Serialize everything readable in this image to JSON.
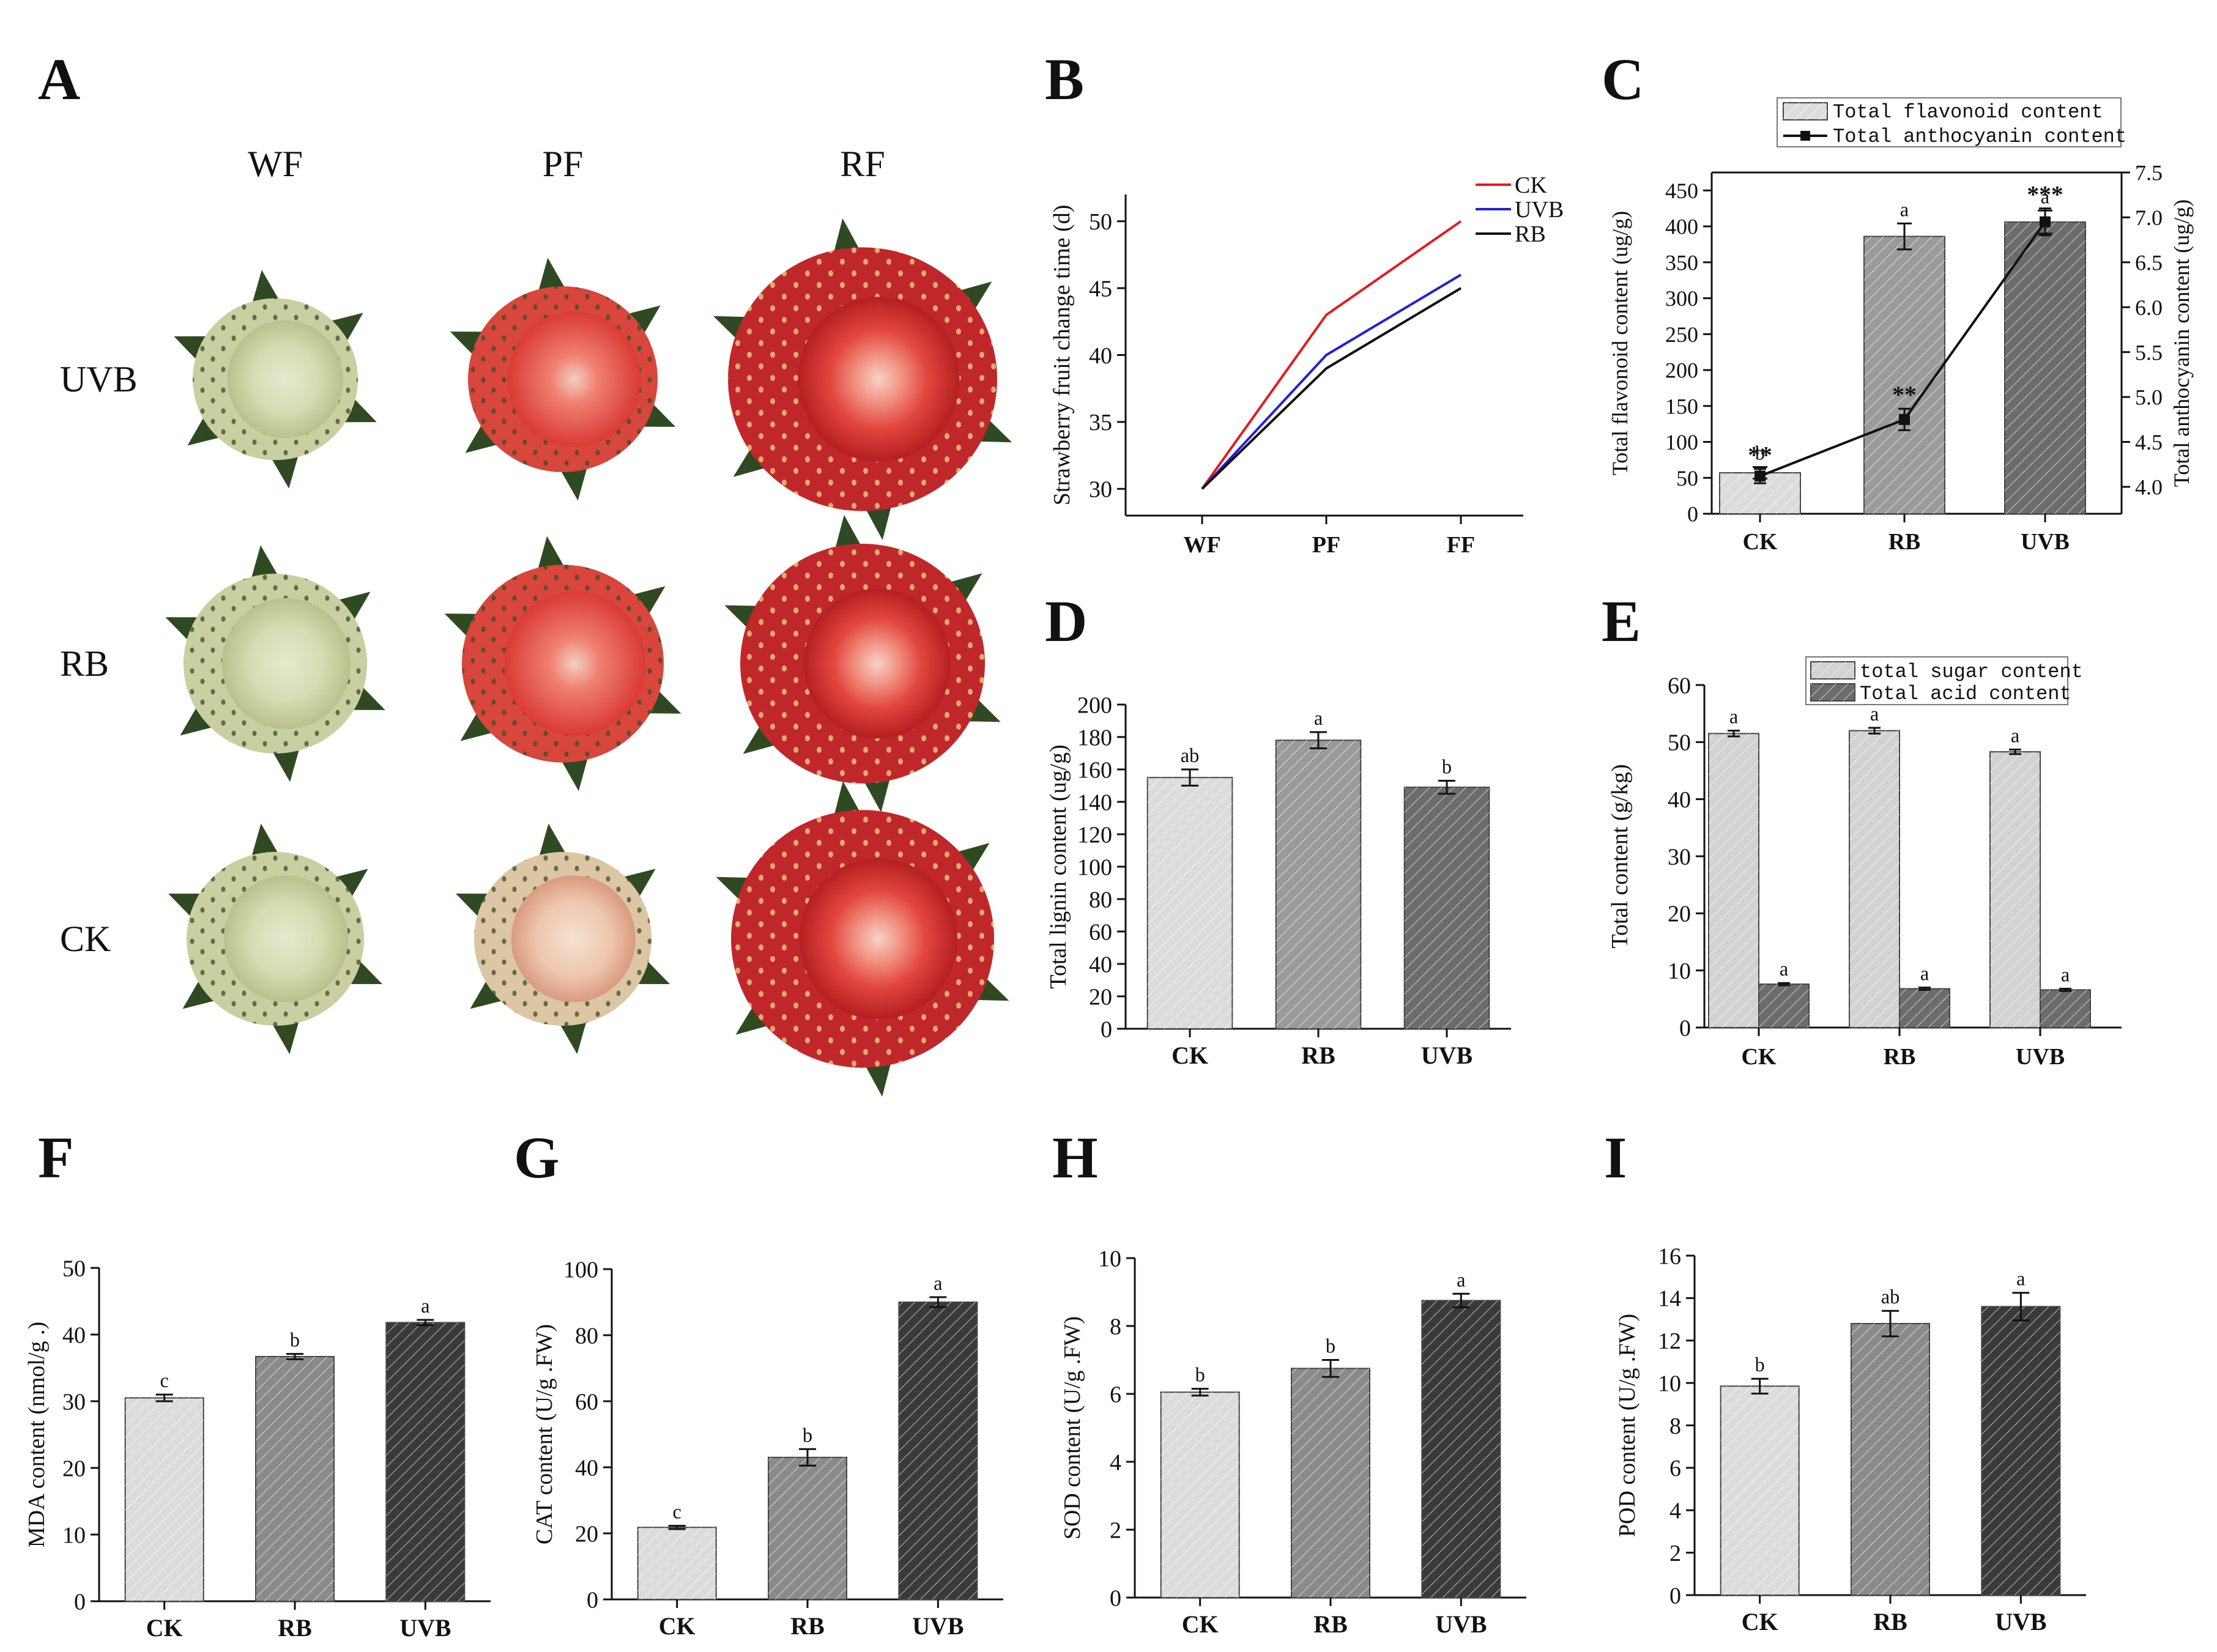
{
  "panels": {
    "A": {
      "letter": "A",
      "column_labels": [
        "WF",
        "PF",
        "RF"
      ],
      "row_labels": [
        "UVB",
        "RB",
        "CK"
      ]
    },
    "B": {
      "letter": "B",
      "chart_data": {
        "type": "line",
        "ylabel": "Strawberry fruit change time  (d)",
        "categories": [
          "WF",
          "PF",
          "FF"
        ],
        "ylim": [
          28,
          52
        ],
        "yticks": [
          30,
          35,
          40,
          45,
          50
        ],
        "series": [
          {
            "name": "CK",
            "values": [
              30,
              43,
              50
            ],
            "color": "#e41a1c"
          },
          {
            "name": "UVB",
            "values": [
              30,
              40,
              46
            ],
            "color": "#2020e0"
          },
          {
            "name": "RB",
            "values": [
              30,
              39,
              45
            ],
            "color": "#111111"
          }
        ]
      }
    },
    "C": {
      "letter": "C",
      "chart_data": {
        "type": "bar+line",
        "categories": [
          "CK",
          "RB",
          "UVB"
        ],
        "ylabel": "Total flavonoid content (ug/g)",
        "y2label": "Total anthocyanin content (ug/g)",
        "ylim": [
          0,
          475
        ],
        "yticks": [
          0,
          50,
          100,
          150,
          200,
          250,
          300,
          350,
          400,
          450
        ],
        "y2lim": [
          3.7,
          7.5
        ],
        "y2ticks": [
          4.0,
          4.5,
          5.0,
          5.5,
          6.0,
          6.5,
          7.0,
          7.5
        ],
        "bars": {
          "name": "Total flavonoid content",
          "values": [
            57,
            386,
            406
          ],
          "errors": [
            8,
            18,
            16
          ],
          "letters": [
            "b",
            "a",
            "a"
          ],
          "colors": [
            "#dcdcdc",
            "#9a9a9a",
            "#6c6c6c"
          ]
        },
        "line": {
          "name": "Total anthocyanin content",
          "values": [
            4.12,
            4.75,
            6.95
          ],
          "errors": [
            0.08,
            0.12,
            0.15
          ],
          "marks": [
            "**",
            "**",
            "***"
          ]
        }
      }
    },
    "D": {
      "letter": "D",
      "chart_data": {
        "type": "bar",
        "categories": [
          "CK",
          "RB",
          "UVB"
        ],
        "ylabel": "Total lignin content (ug/g)",
        "ylim": [
          0,
          200
        ],
        "yticks": [
          0,
          20,
          40,
          60,
          80,
          100,
          120,
          140,
          160,
          180,
          200
        ],
        "values": [
          155,
          178,
          149
        ],
        "errors": [
          5,
          5,
          4
        ],
        "letters": [
          "ab",
          "a",
          "b"
        ],
        "colors": [
          "#dcdcdc",
          "#9a9a9a",
          "#6c6c6c"
        ]
      }
    },
    "E": {
      "letter": "E",
      "chart_data": {
        "type": "grouped-bar",
        "categories": [
          "CK",
          "RB",
          "UVB"
        ],
        "ylabel": "Total content (g/kg)",
        "ylim": [
          0,
          60
        ],
        "yticks": [
          0,
          10,
          20,
          30,
          40,
          50,
          60
        ],
        "series": [
          {
            "name": "total sugar content",
            "values": [
              51.5,
              52.0,
              48.3
            ],
            "errors": [
              0.5,
              0.5,
              0.4
            ],
            "letters": [
              "a",
              "a",
              "a"
            ],
            "color": "#d2d2d2"
          },
          {
            "name": "Total acid content",
            "values": [
              7.6,
              6.8,
              6.6
            ],
            "errors": [
              0.2,
              0.2,
              0.2
            ],
            "letters": [
              "a",
              "a",
              "a"
            ],
            "color": "#6c6c6c"
          }
        ]
      }
    },
    "F": {
      "letter": "F",
      "chart_data": {
        "type": "bar",
        "categories": [
          "CK",
          "RB",
          "UVB"
        ],
        "ylabel": "MDA content (nmol/g .)",
        "ylim": [
          0,
          50
        ],
        "yticks": [
          0,
          10,
          20,
          30,
          40,
          50
        ],
        "values": [
          30.5,
          36.7,
          41.8
        ],
        "errors": [
          0.5,
          0.4,
          0.4
        ],
        "letters": [
          "c",
          "b",
          "a"
        ],
        "colors": [
          "#dcdcdc",
          "#8a8a8a",
          "#3a3a3a"
        ]
      }
    },
    "G": {
      "letter": "G",
      "chart_data": {
        "type": "bar",
        "categories": [
          "CK",
          "RB",
          "UVB"
        ],
        "ylabel": "CAT content (U/g .FW)",
        "ylim": [
          0,
          100
        ],
        "yticks": [
          0,
          20,
          40,
          60,
          80,
          100
        ],
        "values": [
          21.8,
          43.0,
          90.0
        ],
        "errors": [
          0.5,
          2.5,
          1.5
        ],
        "letters": [
          "c",
          "b",
          "a"
        ],
        "colors": [
          "#dcdcdc",
          "#8a8a8a",
          "#3a3a3a"
        ]
      }
    },
    "H": {
      "letter": "H",
      "chart_data": {
        "type": "bar",
        "categories": [
          "CK",
          "RB",
          "UVB"
        ],
        "ylabel": "SOD content (U/g .FW)",
        "ylim": [
          0,
          10
        ],
        "yticks": [
          0,
          2,
          4,
          6,
          8,
          10
        ],
        "values": [
          6.05,
          6.75,
          8.75
        ],
        "errors": [
          0.1,
          0.25,
          0.2
        ],
        "letters": [
          "b",
          "b",
          "a"
        ],
        "colors": [
          "#dcdcdc",
          "#8a8a8a",
          "#3a3a3a"
        ]
      }
    },
    "I": {
      "letter": "I",
      "chart_data": {
        "type": "bar",
        "categories": [
          "CK",
          "RB",
          "UVB"
        ],
        "ylabel": "POD content (U/g .FW)",
        "ylim": [
          0,
          16
        ],
        "yticks": [
          0,
          2,
          4,
          6,
          8,
          10,
          12,
          14,
          16
        ],
        "values": [
          9.85,
          12.8,
          13.6
        ],
        "errors": [
          0.35,
          0.6,
          0.65
        ],
        "letters": [
          "b",
          "ab",
          "a"
        ],
        "colors": [
          "#dcdcdc",
          "#8a8a8a",
          "#3a3a3a"
        ]
      }
    }
  }
}
